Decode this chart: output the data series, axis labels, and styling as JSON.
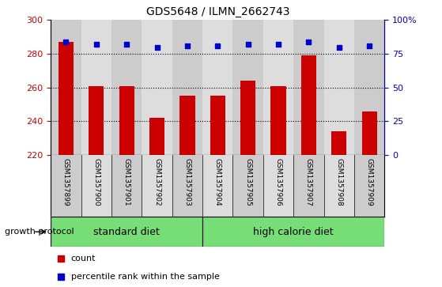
{
  "title": "GDS5648 / ILMN_2662743",
  "samples": [
    "GSM1357899",
    "GSM1357900",
    "GSM1357901",
    "GSM1357902",
    "GSM1357903",
    "GSM1357904",
    "GSM1357905",
    "GSM1357906",
    "GSM1357907",
    "GSM1357908",
    "GSM1357909"
  ],
  "counts": [
    287,
    261,
    261,
    242,
    255,
    255,
    264,
    261,
    279,
    234,
    246
  ],
  "percentiles": [
    84,
    82,
    82,
    80,
    81,
    81,
    82,
    82,
    84,
    80,
    81
  ],
  "ylim_left": [
    220,
    300
  ],
  "ylim_right": [
    0,
    100
  ],
  "yticks_left": [
    220,
    240,
    260,
    280,
    300
  ],
  "yticks_right": [
    0,
    25,
    50,
    75,
    100
  ],
  "bar_color": "#cc0000",
  "dot_color": "#0000cc",
  "bg_color_odd": "#cccccc",
  "bg_color_even": "#dddddd",
  "group1_label": "standard diet",
  "group2_label": "high calorie diet",
  "group_color": "#77dd77",
  "group_protocol_label": "growth protocol",
  "legend_count_label": "count",
  "legend_percentile_label": "percentile rank within the sample",
  "n_group1": 5,
  "n_group2": 6,
  "title_fontsize": 10,
  "tick_fontsize": 8,
  "label_fontsize": 6.5,
  "group_fontsize": 9,
  "legend_fontsize": 8
}
